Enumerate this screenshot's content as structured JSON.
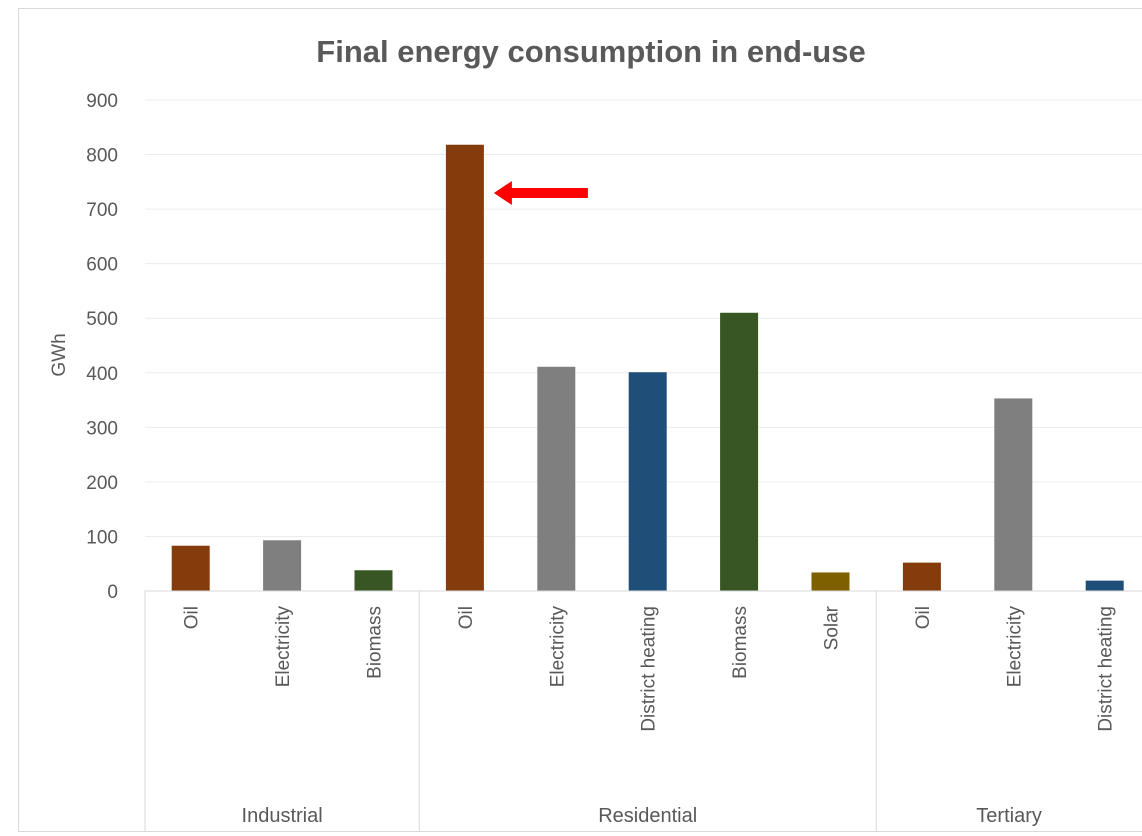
{
  "chart_data": {
    "type": "bar",
    "title": "Final energy consumption in end-use",
    "xlabel": "",
    "ylabel": "GWh",
    "ylim": [
      0,
      900
    ],
    "yticks": [
      0,
      100,
      200,
      300,
      400,
      500,
      600,
      700,
      800,
      900
    ],
    "grid": true,
    "legend": "none",
    "groups": [
      {
        "name": "Industrial",
        "categories": [
          "Oil",
          "Electricity",
          "Biomass"
        ],
        "values": [
          83,
          93,
          38
        ]
      },
      {
        "name": "Residential",
        "categories": [
          "Oil",
          "Electricity",
          "District heating",
          "Biomass",
          "Solar"
        ],
        "values": [
          818,
          411,
          401,
          510,
          34
        ]
      },
      {
        "name": "Tertiary",
        "categories": [
          "Oil",
          "Electricity",
          "District heating"
        ],
        "values": [
          52,
          353,
          19
        ]
      }
    ],
    "category_colors": {
      "Oil": "#843c0c",
      "Electricity": "#7f7f7f",
      "District heating": "#1f4e79",
      "Biomass": "#375623",
      "Solar": "#7f6000"
    },
    "annotations": [
      {
        "type": "arrow",
        "points_to": "Residential / Oil",
        "color": "#ff0000"
      }
    ]
  }
}
